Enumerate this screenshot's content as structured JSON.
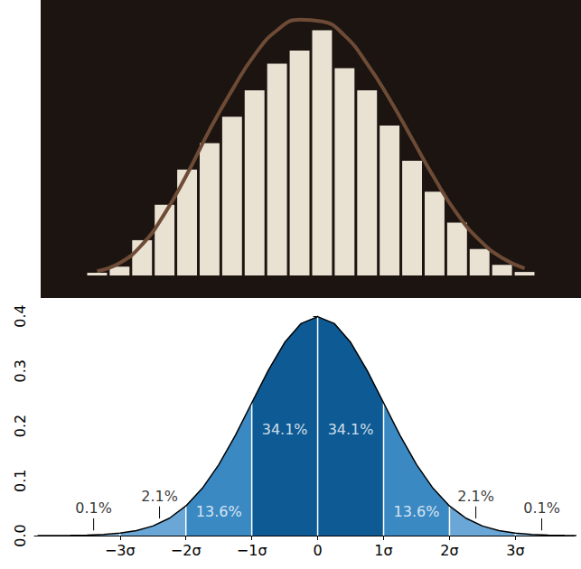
{
  "chart_data": [
    {
      "type": "bar",
      "categories": [
        null,
        null,
        null,
        null,
        null,
        null,
        null,
        null,
        null,
        null,
        null,
        null,
        null,
        null,
        null,
        null,
        null,
        null,
        null,
        null
      ],
      "series": [
        {
          "type": "bar",
          "color": "#e9e1d2",
          "values": [
            3,
            10,
            40,
            80,
            120,
            150,
            180,
            210,
            240,
            255,
            278,
            235,
            210,
            170,
            130,
            95,
            60,
            30,
            12,
            4
          ]
        },
        {
          "type": "line",
          "color": "#6e4b36",
          "values": [
            5,
            14,
            35,
            70,
            115,
            165,
            210,
            250,
            278,
            290,
            288,
            272,
            240,
            200,
            155,
            110,
            70,
            40,
            20,
            8
          ]
        }
      ],
      "ylim": [
        0,
        300
      ],
      "grid": false,
      "tick_labels": false
    },
    {
      "type": "area",
      "x": [
        -4.25,
        -4,
        -3.75,
        -3.5,
        -3.25,
        -3,
        -2.75,
        -2.5,
        -2.25,
        -2,
        -1.75,
        -1.5,
        -1.25,
        -1,
        -0.75,
        -0.5,
        -0.25,
        0,
        0.25,
        0.5,
        0.75,
        1,
        1.25,
        1.5,
        1.75,
        2,
        2.25,
        2.5,
        2.75,
        3,
        3.25,
        3.5,
        3.75,
        4
      ],
      "values": [
        0.0,
        0.0001,
        0.0004,
        0.0009,
        0.002,
        0.0044,
        0.0091,
        0.0175,
        0.0317,
        0.054,
        0.0863,
        0.1295,
        0.1826,
        0.242,
        0.3011,
        0.3521,
        0.3867,
        0.3989,
        0.3867,
        0.3521,
        0.3011,
        0.242,
        0.1826,
        0.1295,
        0.0863,
        0.054,
        0.0317,
        0.0175,
        0.0091,
        0.0044,
        0.002,
        0.0009,
        0.0004,
        0.0001
      ],
      "color": "#000000",
      "regions": [
        {
          "from": -4.3,
          "to": -3,
          "label": "0.1%",
          "color": "#92c0e4"
        },
        {
          "from": -3,
          "to": -2,
          "label": "2.1%",
          "color": "#6aa6d6"
        },
        {
          "from": -2,
          "to": -1,
          "label": "13.6%",
          "color": "#3a89c3"
        },
        {
          "from": -1,
          "to": 0,
          "label": "34.1%",
          "color": "#0e5a94"
        },
        {
          "from": 0,
          "to": 1,
          "label": "34.1%",
          "color": "#0e5a94"
        },
        {
          "from": 1,
          "to": 2,
          "label": "13.6%",
          "color": "#3a89c3"
        },
        {
          "from": 2,
          "to": 3,
          "label": "2.1%",
          "color": "#6aa6d6"
        },
        {
          "from": 3,
          "to": 3.9,
          "label": "0.1%",
          "color": "#92c0e4"
        }
      ],
      "xlim": [
        -4.3,
        3.9
      ],
      "xticks": [
        {
          "value": -3,
          "label": "−3σ"
        },
        {
          "value": -2,
          "label": "−2σ"
        },
        {
          "value": -1,
          "label": "−1σ"
        },
        0,
        {
          "value": 1,
          "label": "1σ"
        },
        {
          "value": 2,
          "label": "2σ"
        },
        {
          "value": 3,
          "label": "3σ"
        }
      ],
      "ylim": [
        0,
        0.4
      ],
      "yticks": [
        {
          "value": 0,
          "label": "0.0"
        },
        {
          "value": 0.1,
          "label": "0.1"
        },
        {
          "value": 0.2,
          "label": "0.2"
        },
        {
          "value": 0.3,
          "label": "0.3"
        },
        {
          "value": 0.4,
          "label": "0.4"
        }
      ],
      "grid": false
    }
  ]
}
